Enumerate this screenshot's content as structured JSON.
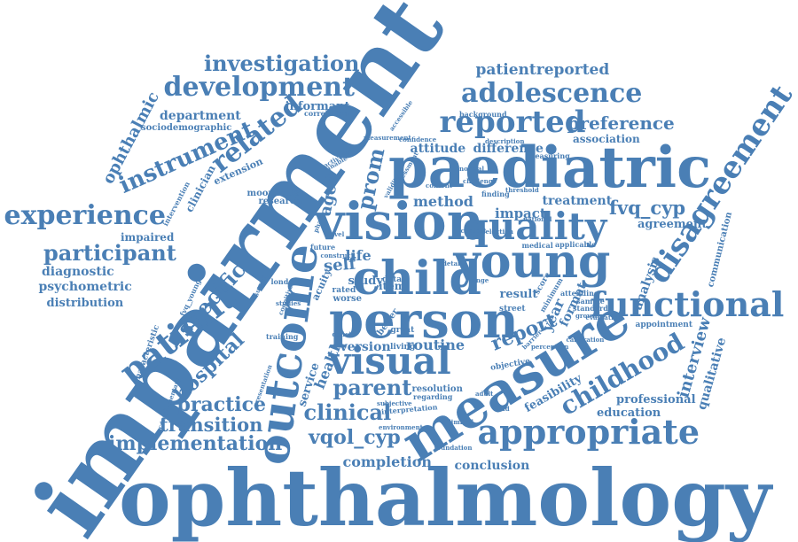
{
  "color": "#4a7fb5",
  "words": [
    "impairment",
    "ophthalmology",
    "paediatric",
    "vision",
    "person",
    "measure",
    "young",
    "child",
    "outcome",
    "visual",
    "appropriate",
    "quality",
    "functional",
    "reported",
    "disagreement",
    "adolescence",
    "development",
    "experience",
    "investigation",
    "patient",
    "childhood",
    "participant",
    "related",
    "instrument",
    "specific",
    "practice",
    "implementation",
    "transition",
    "hospital",
    "clinical",
    "vqol_cyp",
    "fvq_cyp",
    "parent",
    "report",
    "preference",
    "patientreported",
    "department",
    "ophthalmic",
    "interview",
    "qualitative",
    "psychometric",
    "diagnostic",
    "distribution",
    "impaired",
    "prom",
    "aged",
    "method",
    "impact",
    "treatment",
    "difference",
    "attitude",
    "association",
    "completion",
    "conclusion",
    "routine",
    "version",
    "health",
    "service",
    "self",
    "life",
    "study",
    "item",
    "result",
    "year",
    "format",
    "professional",
    "education",
    "feasibility",
    "analysis",
    "communication",
    "agreement",
    "informant",
    "sociodemographic",
    "clinician",
    "moorfields",
    "research",
    "extension",
    "london",
    "acuity",
    "rated",
    "worse",
    "great",
    "living",
    "resolution",
    "regarding",
    "objective",
    "score",
    "minimum",
    "attending",
    "sample",
    "standard",
    "appointment",
    "characteristic",
    "training",
    "interpretation",
    "environment",
    "foundation",
    "correlation",
    "background",
    "measurement",
    "medical",
    "applicable",
    "national",
    "finding",
    "street",
    "data",
    "better",
    "future",
    "construct",
    "evaluation",
    "growing",
    "complementary",
    "cognitive",
    "studies",
    "description",
    "measuring",
    "confidence",
    "intervention",
    "fvq_young",
    "survey",
    "accessible",
    "threshold",
    "phase",
    "unable",
    "barrier",
    "perception",
    "calibration",
    "subjective",
    "presentation",
    "context",
    "selection",
    "validity",
    "challenge",
    "deficit",
    "limited",
    "adult",
    "field",
    "assessment",
    "normal",
    "content",
    "range",
    "detail",
    "level",
    "activities"
  ]
}
